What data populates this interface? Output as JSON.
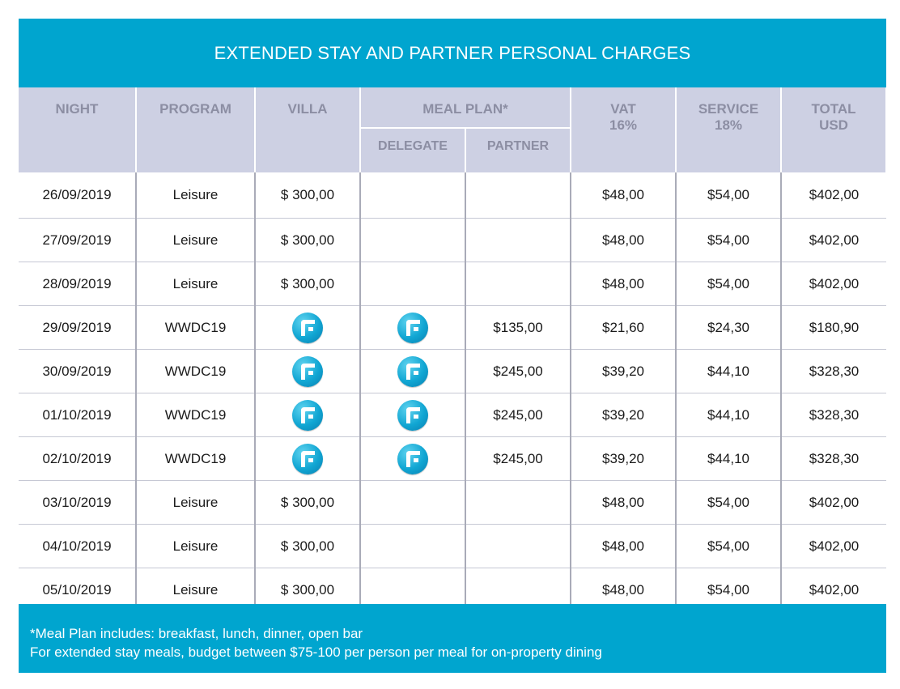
{
  "title": "EXTENDED STAY AND PARTNER PERSONAL CHARGES",
  "headers": {
    "night": "NIGHT",
    "program": "PROGRAM",
    "villa": "VILLA",
    "meal_plan": "MEAL PLAN*",
    "delegate": "DELEGATE",
    "partner": "PARTNER",
    "vat": "VAT",
    "vat_pct": "16%",
    "service": "SERVICE",
    "service_pct": "18%",
    "total": "TOTAL",
    "total_unit": "USD"
  },
  "rows": [
    {
      "night": "26/09/2019",
      "program": "Leisure",
      "villa": "$ 300,00",
      "villa_icon": false,
      "delegate_icon": false,
      "partner": "",
      "vat": "$48,00",
      "service": "$54,00",
      "total": "$402,00"
    },
    {
      "night": "27/09/2019",
      "program": "Leisure",
      "villa": "$ 300,00",
      "villa_icon": false,
      "delegate_icon": false,
      "partner": "",
      "vat": "$48,00",
      "service": "$54,00",
      "total": "$402,00"
    },
    {
      "night": "28/09/2019",
      "program": "Leisure",
      "villa": "$ 300,00",
      "villa_icon": false,
      "delegate_icon": false,
      "partner": "",
      "vat": "$48,00",
      "service": "$54,00",
      "total": "$402,00"
    },
    {
      "night": "29/09/2019",
      "program": "WWDC19",
      "villa": "",
      "villa_icon": true,
      "delegate_icon": true,
      "partner": "$135,00",
      "vat": "$21,60",
      "service": "$24,30",
      "total": "$180,90"
    },
    {
      "night": "30/09/2019",
      "program": "WWDC19",
      "villa": "",
      "villa_icon": true,
      "delegate_icon": true,
      "partner": "$245,00",
      "vat": "$39,20",
      "service": "$44,10",
      "total": "$328,30"
    },
    {
      "night": "01/10/2019",
      "program": "WWDC19",
      "villa": "",
      "villa_icon": true,
      "delegate_icon": true,
      "partner": "$245,00",
      "vat": "$39,20",
      "service": "$44,10",
      "total": "$328,30"
    },
    {
      "night": "02/10/2019",
      "program": "WWDC19",
      "villa": "",
      "villa_icon": true,
      "delegate_icon": true,
      "partner": "$245,00",
      "vat": "$39,20",
      "service": "$44,10",
      "total": "$328,30"
    },
    {
      "night": "03/10/2019",
      "program": "Leisure",
      "villa": "$ 300,00",
      "villa_icon": false,
      "delegate_icon": false,
      "partner": "",
      "vat": "$48,00",
      "service": "$54,00",
      "total": "$402,00"
    },
    {
      "night": "04/10/2019",
      "program": "Leisure",
      "villa": "$ 300,00",
      "villa_icon": false,
      "delegate_icon": false,
      "partner": "",
      "vat": "$48,00",
      "service": "$54,00",
      "total": "$402,00"
    },
    {
      "night": "05/10/2019",
      "program": "Leisure",
      "villa": "$ 300,00",
      "villa_icon": false,
      "delegate_icon": false,
      "partner": "",
      "vat": "$48,00",
      "service": "$54,00",
      "total": "$402,00"
    }
  ],
  "icon_name": "included-logo-icon",
  "footer": {
    "line1": "*Meal Plan includes: breakfast, lunch, dinner, open bar",
    "line2": "For extended stay meals, budget between $75-100 per person per meal for on-property dining"
  },
  "colors": {
    "accent": "#00a5cf",
    "header_bg": "#cdd0e3",
    "header_text": "#8c8ea3"
  }
}
